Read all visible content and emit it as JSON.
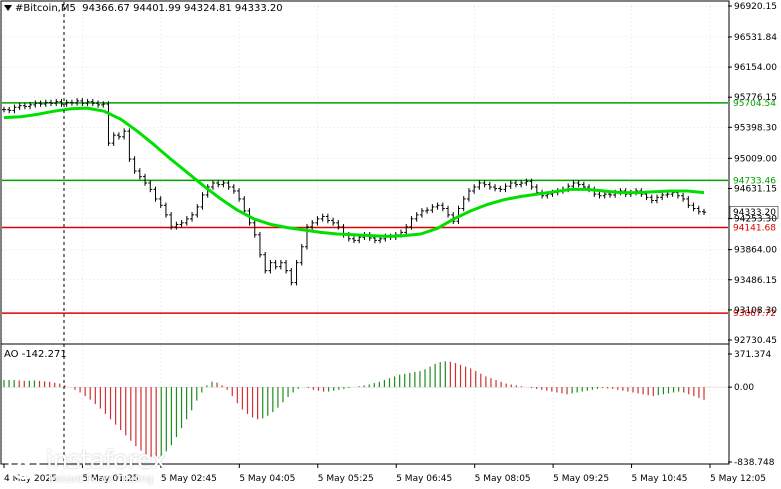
{
  "header": {
    "symbol": "#Bitcoin,M5",
    "open": "94366.67",
    "high": "94401.99",
    "low": "94324.81",
    "close": "94333.20"
  },
  "chart_data": [
    {
      "type": "line",
      "title": "#Bitcoin,M5",
      "ylim": [
        92730.45,
        96920.15
      ],
      "price_ticks": [
        "96920.15",
        "96531.84",
        "96154.00",
        "95776.15",
        "95398.30",
        "95009.00",
        "94631.15",
        "94253.30",
        "93864.00",
        "93486.15",
        "93108.30",
        "92730.45"
      ],
      "time_labels": [
        "4 May 2025",
        "5 May 01:25",
        "5 May 02:45",
        "5 May 04:05",
        "5 May 05:25",
        "5 May 06:45",
        "5 May 08:05",
        "5 May 09:25",
        "5 May 10:45",
        "5 May 12:05"
      ],
      "levels": [
        {
          "label": "95704.54",
          "value": 95704.54,
          "color": "#00a000"
        },
        {
          "label": "94733.46",
          "value": 94733.46,
          "color": "#00a000"
        },
        {
          "label": "94141.68",
          "value": 94141.68,
          "color": "#e00000"
        },
        {
          "label": "93067.72",
          "value": 93067.72,
          "color": "#e00000"
        }
      ],
      "current_price": {
        "label": "94333.20",
        "value": 94333.2
      },
      "price_series": [
        95620,
        95610,
        95650,
        95670,
        95660,
        95680,
        95700,
        95690,
        95710,
        95700,
        95720,
        95690,
        95710,
        95705,
        95730,
        95700,
        95720,
        95700,
        95680,
        95690,
        95200,
        95300,
        95280,
        95350,
        95000,
        94850,
        94780,
        94700,
        94620,
        94500,
        94420,
        94300,
        94150,
        94180,
        94200,
        94250,
        94300,
        94400,
        94550,
        94650,
        94700,
        94680,
        94700,
        94650,
        94600,
        94500,
        94350,
        94200,
        94050,
        93800,
        93600,
        93700,
        93650,
        93700,
        93600,
        93450,
        93700,
        93900,
        94150,
        94200,
        94250,
        94280,
        94230,
        94200,
        94150,
        94050,
        94000,
        93980,
        94020,
        94050,
        94010,
        93980,
        94000,
        94030,
        94020,
        94050,
        94080,
        94150,
        94250,
        94300,
        94350,
        94360,
        94400,
        94420,
        94380,
        94300,
        94220,
        94380,
        94500,
        94600,
        94650,
        94700,
        94680,
        94650,
        94630,
        94620,
        94660,
        94700,
        94680,
        94700,
        94720,
        94650,
        94580,
        94540,
        94560,
        94580,
        94600,
        94620,
        94660,
        94700,
        94680,
        94650,
        94620,
        94560,
        94540,
        94560,
        94550,
        94580,
        94600,
        94560,
        94580,
        94600,
        94560,
        94520,
        94480,
        94520,
        94550,
        94560,
        94580,
        94540,
        94500,
        94420,
        94380,
        94340,
        94333.2
      ],
      "ma_series": [
        95520,
        95530,
        95560,
        95600,
        95630,
        95640,
        95600,
        95500,
        95350,
        95180,
        95000,
        94830,
        94660,
        94500,
        94360,
        94250,
        94180,
        94140,
        94110,
        94080,
        94060,
        94050,
        94040,
        94030,
        94040,
        94060,
        94130,
        94250,
        94350,
        94430,
        94490,
        94530,
        94560,
        94590,
        94620,
        94620,
        94600,
        94580,
        94580,
        94590,
        94600,
        94600,
        94580
      ]
    },
    {
      "type": "bar",
      "title": "AO -142.271",
      "ylim": [
        -838.748,
        371.374
      ],
      "y_ticks": [
        "371.374",
        "0.00",
        "-838.748"
      ],
      "values": [
        80,
        80,
        80,
        75,
        70,
        72,
        75,
        70,
        65,
        60,
        50,
        40,
        20,
        0,
        -30,
        -60,
        -100,
        -140,
        -190,
        -240,
        -300,
        -360,
        -420,
        -480,
        -540,
        -600,
        -660,
        -710,
        -750,
        -780,
        -800,
        -780,
        -720,
        -650,
        -560,
        -460,
        -360,
        -260,
        -150,
        -60,
        20,
        60,
        50,
        20,
        -30,
        -100,
        -180,
        -250,
        -300,
        -340,
        -360,
        -350,
        -320,
        -280,
        -230,
        -170,
        -110,
        -60,
        -20,
        0,
        -10,
        -30,
        -40,
        -50,
        -50,
        -40,
        -30,
        -20,
        -10,
        0,
        10,
        20,
        30,
        45,
        60,
        80,
        100,
        120,
        140,
        150,
        160,
        170,
        180,
        200,
        230,
        260,
        280,
        290,
        285,
        270,
        250,
        230,
        210,
        180,
        150,
        120,
        100,
        80,
        60,
        40,
        30,
        20,
        10,
        0,
        -10,
        -20,
        -30,
        -40,
        -50,
        -60,
        -70,
        -80,
        -70,
        -60,
        -50,
        -40,
        -30,
        -20,
        -10,
        -15,
        -20,
        -30,
        -40,
        -50,
        -60,
        -70,
        -80,
        -90,
        -100,
        -90,
        -80,
        -70,
        -60,
        -50,
        -60,
        -80,
        -100,
        -120,
        -142.271
      ]
    }
  ],
  "ao": {
    "label": "AO -142.271"
  },
  "logo": {
    "name": "instaforex",
    "tagline": "Instant Forex Trading",
    "icon": "instaforex-logo-icon"
  },
  "colors": {
    "grid": "#c8c8c8",
    "price": "#000000",
    "ma": "#00e000",
    "support_resistance_green": "#00a000",
    "support_resistance_red": "#e00000",
    "ao_up": "#1e8c1e",
    "ao_down": "#d03030"
  }
}
